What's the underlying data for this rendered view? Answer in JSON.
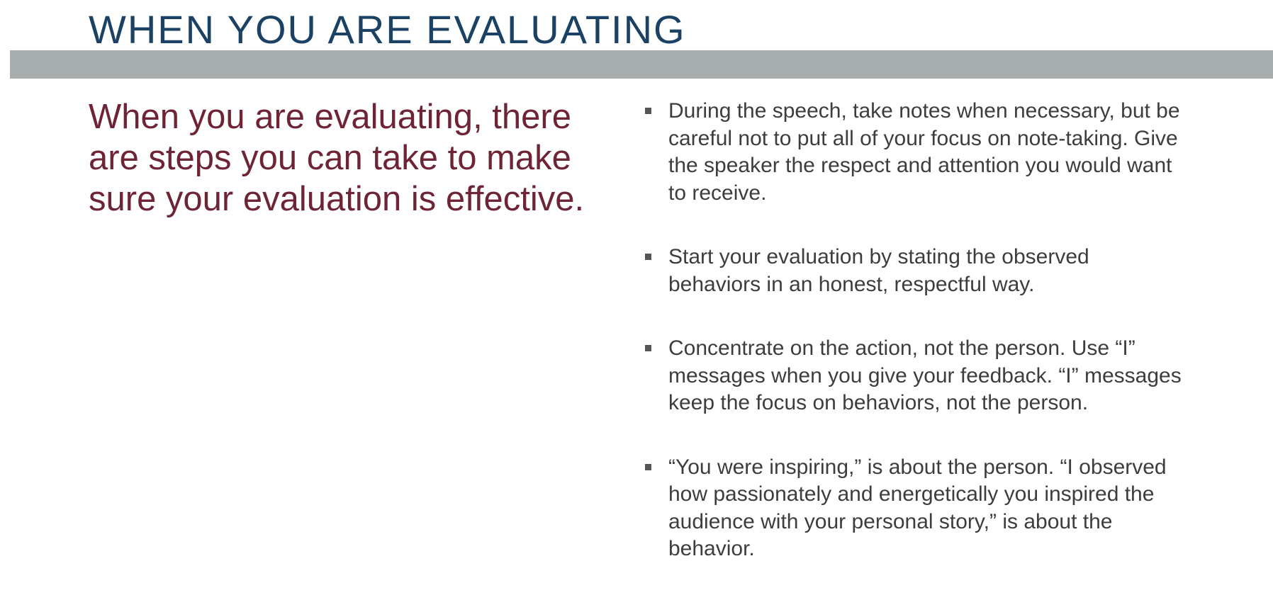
{
  "slide": {
    "title": "WHEN YOU ARE EVALUATING",
    "intro": "When you are evaluating, there are steps you can take to make sure your evaluation is effective.",
    "bullets": [
      "During the speech, take notes when necessary, but be careful not to put all of your focus on note-taking. Give the speaker the respect and attention you would want to receive.",
      "Start your evaluation by stating the observed behaviors in an honest, respectful way.",
      "Concentrate on the action, not the person. Use “I” messages when you give your feedback. “I” messages keep the focus on behaviors, not the person.",
      "“You were inspiring,” is about the person. “I observed how passionately and energetically you inspired the audience with your personal story,” is about the behavior."
    ]
  },
  "colors": {
    "title": "#1b4164",
    "title_bar": "#a8aeae",
    "intro": "#6e2435",
    "body_text": "#3d3d3d",
    "bullet_marker": "#555555"
  },
  "icons": {
    "bullet": "square-bullet-icon"
  }
}
